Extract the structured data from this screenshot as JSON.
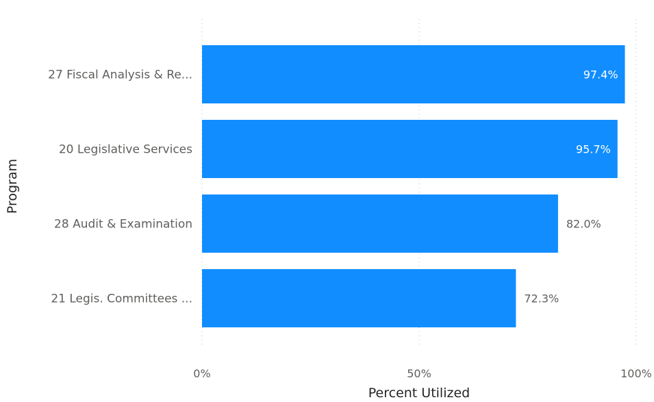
{
  "chart_data": {
    "type": "bar",
    "orientation": "horizontal",
    "categories": [
      "27 Fiscal Analysis & Re...",
      "20 Legislative Services",
      "28 Audit & Examination",
      "21 Legis. Committees ..."
    ],
    "values": [
      97.4,
      95.7,
      82.0,
      72.3
    ],
    "data_labels": [
      "97.4%",
      "95.7%",
      "82.0%",
      "72.3%"
    ],
    "xlabel": "Percent Utilized",
    "ylabel": "Program",
    "xlim": [
      0,
      100
    ],
    "x_ticks": [
      0,
      50,
      100
    ],
    "x_tick_labels": [
      "0%",
      "50%",
      "100%"
    ],
    "grid": "vertical-dotted",
    "legend": "none"
  },
  "colors": {
    "bar": "#118dff",
    "label_inside": "#ffffff",
    "label_outside": "#605e5c"
  }
}
